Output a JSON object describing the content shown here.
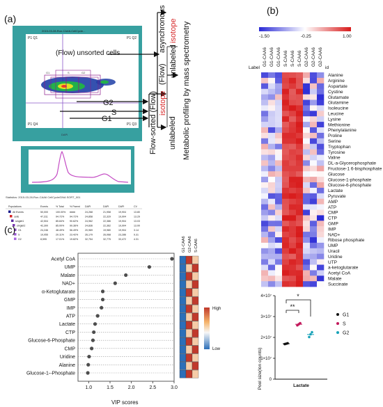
{
  "panels": {
    "a": "(a)",
    "b": "(b)",
    "c": "(c)"
  },
  "panel_a": {
    "flow_title": "2015-03-28-Run-CAA6-CellCycle...",
    "gate_labels": [
      "P1 Q1",
      "P1 Q2",
      "P1 Q4",
      "P1 Q3"
    ],
    "unsorted_label": "(Flow) unsorted cells",
    "async_label": "asynchronous",
    "isotope_label": "isotope",
    "unlabeled_label": "unlabeled",
    "sorted_label": "Flow-sorted (Flow)",
    "metabolic_label": "Metabolic profiling by mass spectrometry",
    "phase_labels": [
      "G2",
      "S",
      "G1"
    ],
    "colors": {
      "flow_bg": "#37a0a0",
      "isotope": "#d62728"
    },
    "stats_title": "Statistics: 2015-03-28-Run-CAA6 CellCycle/DNA SORT_001",
    "stats_header": [
      "Populations",
      "Events",
      "% Total",
      "% Parent",
      "DAPI",
      "DAPI",
      "DAPI",
      "CV"
    ],
    "stats_rows": [
      [
        "All Events",
        "50,000",
        "100.00%",
        "####",
        "24,268",
        "21,958",
        "19,904",
        "13.80"
      ],
      [
        "cells",
        "47,311",
        "94.72%",
        "94.72%",
        "24,858",
        "22,329",
        "19,904",
        "13.29"
      ],
      [
        "singlet1",
        "42,504",
        "85.84%",
        "90.62%",
        "24,962",
        "22,386",
        "19,904",
        "13.03"
      ],
      [
        "singlet2",
        "42,300",
        "85.00%",
        "99.36%",
        "24,836",
        "22,362",
        "19,904",
        "13.00"
      ],
      [
        "G1",
        "24,246",
        "48.49%",
        "56.49%",
        "20,969",
        "19,980",
        "19,904",
        "3.14"
      ],
      [
        "S",
        "10,055",
        "20.11%",
        "23.42%",
        "26,179",
        "26,068",
        "23,286",
        "9.31"
      ],
      [
        "G2",
        "8,595",
        "17.01%",
        "19.82%",
        "32,754",
        "32,775",
        "33,472",
        "4.31"
      ]
    ]
  },
  "heatmap": {
    "scale_min": "-1.50",
    "scale_mid": "-0.25",
    "scale_max": "1.00",
    "row_label": "Label",
    "id_label": "id",
    "columns": [
      "G1-CAA6",
      "G1-CAA6",
      "G1-CAA6",
      "S-CAA6",
      "S-CAA6",
      "S-CAA6",
      "G2-CAA6",
      "G2-CAA6",
      "G2-CAA6"
    ],
    "rows": [
      "Alanine",
      "Arginine",
      "Aspartate",
      "Cystine",
      "Glutamate",
      "Glutamine",
      "Isoleucine",
      "Leucine",
      "Lysine",
      "Methionine",
      "Phenylalanine",
      "Proline",
      "Serine",
      "Tryptophan",
      "Tyrosine",
      "Valine",
      "DL-a-Glycerophosphate",
      "Fructose-1 6-bisphosphate",
      "Glucose",
      "Glucose-1-phosphate",
      "Glucose-6-phosphate",
      "Lactate",
      "Pyruvate",
      "AMP",
      "ATP",
      "CMP",
      "CTP",
      "GMP",
      "IMP",
      "NAD+",
      "Ribose phosphate",
      "UMP",
      "Uracil",
      "Uridine",
      "UTP",
      "a-ketoglutarate",
      "Acetyl CoA",
      "Malate",
      "Succinate"
    ]
  },
  "chart_data": [
    {
      "type": "scatter",
      "title": "",
      "xlabel": "VIP scores",
      "ylabel": "",
      "xlim": [
        0.75,
        3.0
      ],
      "xticks": [
        "1.0",
        "1.5",
        "2.0",
        "2.5",
        "3.0"
      ],
      "categories": [
        "Acetyl CoA",
        "UMP",
        "Malate",
        "NAD+",
        "α-Ketoglutarate",
        "GMP",
        "IMP",
        "ATP",
        "Lactate",
        "CTP",
        "Glucose-6-Phosphate",
        "CMP",
        "Uridine",
        "Alanine",
        "Glucose-1--Phosphate"
      ],
      "values": [
        2.95,
        2.42,
        1.87,
        1.62,
        1.33,
        1.33,
        1.3,
        1.21,
        1.15,
        1.12,
        1.1,
        1.07,
        1.01,
        0.99,
        0.98
      ],
      "column_labels": [
        "G1-CAA6",
        "G2-CAA6",
        "S-CAA6"
      ],
      "legend_high": "High",
      "legend_low": "Low"
    },
    {
      "type": "scatter",
      "title": "",
      "ylabel": "Pool size(Ion counts)",
      "xlabel": "",
      "categories": [
        "Lactate"
      ],
      "ylim": [
        0,
        40000000
      ],
      "yticks": [
        "0",
        "1×10⁷",
        "2×10⁷",
        "3×10⁷",
        "4×10⁷"
      ],
      "series": [
        {
          "name": "G1",
          "color": "#111111",
          "values": [
            16800000,
            17000000,
            17200000
          ]
        },
        {
          "name": "S",
          "color": "#c2185b",
          "values": [
            25800000,
            26300000,
            26800000
          ]
        },
        {
          "name": "G2",
          "color": "#17a2b8",
          "values": [
            20200000,
            21500000,
            22500000
          ]
        }
      ],
      "significance": [
        "**",
        "*"
      ]
    }
  ]
}
